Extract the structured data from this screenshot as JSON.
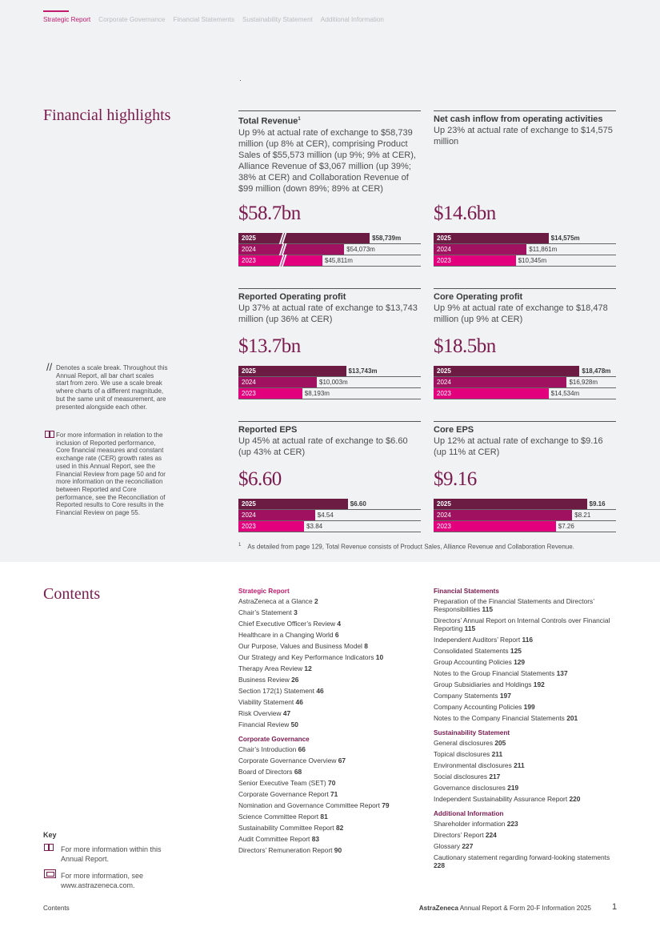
{
  "nav": {
    "items": [
      "Strategic Report",
      "Corporate Governance",
      "Financial Statements",
      "Sustainability Statement",
      "Additional Information"
    ]
  },
  "highlights": {
    "title": "Financial highlights",
    "metrics": [
      {
        "title": "Total Revenue",
        "title_sup": "1",
        "desc": "Up 9% at actual rate of exchange to $58,739 million (up 8% at CER), comprising Product Sales of $55,573 million (up 9%; 9% at CER), Alliance Revenue of $3,067 million (up 39%; 38% at CER) and Collaboration Revenue of $99 million (down 89%; 89% at CER)",
        "big": "$58.7bn",
        "bars": [
          {
            "year": "2025",
            "label": "$58,739m",
            "fill": 0.72
          },
          {
            "year": "2024",
            "label": "$54,073m",
            "fill": 0.58
          },
          {
            "year": "2023",
            "label": "$45,811m",
            "fill": 0.46
          }
        ]
      },
      {
        "title": "Net cash inflow from operating activities",
        "desc": "Up 23% at actual rate of exchange to $14,575 million",
        "big": "$14.6bn",
        "bars": [
          {
            "year": "2025",
            "label": "$14,575m",
            "fill": 0.63
          },
          {
            "year": "2024",
            "label": "$11,861m",
            "fill": 0.51
          },
          {
            "year": "2023",
            "label": "$10,345m",
            "fill": 0.45
          }
        ]
      },
      {
        "title": "Reported Operating profit",
        "desc": "Up 37% at actual rate of exchange to $13,743 million (up 36% at CER)",
        "big": "$13.7bn",
        "bars": [
          {
            "year": "2025",
            "label": "$13,743m",
            "fill": 0.59
          },
          {
            "year": "2024",
            "label": "$10,003m",
            "fill": 0.43
          },
          {
            "year": "2023",
            "label": "$8,193m",
            "fill": 0.35
          }
        ]
      },
      {
        "title": "Core Operating profit",
        "desc": "Up 9% at actual rate of exchange to $18,478 million (up 9% at CER)",
        "big": "$18.5bn",
        "bars": [
          {
            "year": "2025",
            "label": "$18,478m",
            "fill": 0.8
          },
          {
            "year": "2024",
            "label": "$16,928m",
            "fill": 0.73
          },
          {
            "year": "2023",
            "label": "$14,534m",
            "fill": 0.63
          }
        ]
      },
      {
        "title": "Reported EPS",
        "desc": "Up 45% at actual rate of exchange to $6.60 (up 43% at CER)",
        "big": "$6.60",
        "bars": [
          {
            "year": "2025",
            "label": "$6.60",
            "fill": 0.6
          },
          {
            "year": "2024",
            "label": "$4.54",
            "fill": 0.42
          },
          {
            "year": "2023",
            "label": "$3.84",
            "fill": 0.36
          }
        ]
      },
      {
        "title": "Core EPS",
        "desc": "Up 12% at actual rate of exchange to $9.16 (up 11% at CER)",
        "big": "$9.16",
        "bars": [
          {
            "year": "2025",
            "label": "$9.16",
            "fill": 0.84
          },
          {
            "year": "2024",
            "label": "$8.21",
            "fill": 0.76
          },
          {
            "year": "2023",
            "label": "$7.26",
            "fill": 0.67
          }
        ]
      }
    ],
    "note_scale_symbol": "//",
    "note_scale": "Denotes a scale break. Throughout this Annual Report, all bar chart scales start from zero. We use a scale break where charts of a different magnitude, but the same unit of measurement, are presented alongside each other.",
    "note_info": "For more information in relation to the inclusion of Reported performance, Core financial measures and constant exchange rate (CER) growth rates as used in this Annual Report, see the Financial Review from page 50 and for more information on the reconciliation between Reported and Core performance, see the Reconciliation of Reported results to Core results in the Financial Review on page 55.",
    "footnote_mark": "1",
    "footnote": "As detailed from page 129, Total Revenue consists of Product Sales, Alliance Revenue and Collaboration Revenue."
  },
  "contents": {
    "title": "Contents",
    "left_groups": [
      {
        "heading": "Strategic Report",
        "items": [
          {
            "text": "AstraZeneca at a Glance",
            "page": "2"
          },
          {
            "text": "Chair’s Statement",
            "page": "3"
          },
          {
            "text": "Chief Executive Officer’s Review",
            "page": "4"
          },
          {
            "text": "Healthcare in a Changing World",
            "page": "6"
          },
          {
            "text": "Our Purpose, Values and Business Model",
            "page": "8"
          },
          {
            "text": "Our Strategy and Key Performance Indicators",
            "page": "10"
          },
          {
            "text": "Therapy Area Review",
            "page": "12"
          },
          {
            "text": "Business Review",
            "page": "26"
          },
          {
            "text": "Section 172(1) Statement",
            "page": "46"
          },
          {
            "text": "Viability Statement",
            "page": "46"
          },
          {
            "text": "Risk Overview",
            "page": "47"
          },
          {
            "text": "Financial Review",
            "page": "50"
          }
        ]
      },
      {
        "heading": "Corporate Governance",
        "items": [
          {
            "text": "Chair’s Introduction",
            "page": "66"
          },
          {
            "text": "Corporate Governance Overview",
            "page": "67"
          },
          {
            "text": "Board of Directors",
            "page": "68"
          },
          {
            "text": "Senior Executive Team (SET)",
            "page": "70"
          },
          {
            "text": "Corporate Governance Report",
            "page": "71"
          },
          {
            "text": "Nomination and Governance Committee Report",
            "page": "79"
          },
          {
            "text": "Science Committee Report",
            "page": "81"
          },
          {
            "text": "Sustainability Committee Report",
            "page": "82"
          },
          {
            "text": "Audit Committee Report",
            "page": "83"
          },
          {
            "text": "Directors’ Remuneration Report",
            "page": "90"
          }
        ]
      }
    ],
    "right_groups": [
      {
        "heading": "Financial Statements",
        "items": [
          {
            "text": "Preparation of the Financial Statements and Directors’ Responsibilities",
            "page": "115"
          },
          {
            "text": "Directors’ Annual Report on Internal Controls over Financial Reporting",
            "page": "115"
          },
          {
            "text": "Independent Auditors’ Report",
            "page": "116"
          },
          {
            "text": "Consolidated Statements",
            "page": "125"
          },
          {
            "text": "Group Accounting Policies",
            "page": "129"
          },
          {
            "text": "Notes to the Group Financial Statements",
            "page": "137"
          },
          {
            "text": "Group Subsidiaries and Holdings",
            "page": "192"
          },
          {
            "text": "Company Statements",
            "page": "197"
          },
          {
            "text": "Company Accounting Policies",
            "page": "199"
          },
          {
            "text": "Notes to the Company Financial Statements",
            "page": "201"
          }
        ]
      },
      {
        "heading": "Sustainability Statement",
        "items": [
          {
            "text": "General disclosures",
            "page": "205"
          },
          {
            "text": "Topical disclosures",
            "page": "211"
          },
          {
            "text": "Environmental disclosures",
            "page": "211"
          },
          {
            "text": "Social disclosures",
            "page": "217"
          },
          {
            "text": "Governance disclosures",
            "page": "219"
          },
          {
            "text": "Independent Sustainability Assurance Report",
            "page": "220"
          }
        ]
      },
      {
        "heading": "Additional Information",
        "items": [
          {
            "text": "Shareholder information",
            "page": "223"
          },
          {
            "text": "Directors’ Report",
            "page": "224"
          },
          {
            "text": "Glossary",
            "page": "227"
          },
          {
            "text": "Cautionary statement regarding forward-looking statements",
            "page": "228"
          }
        ]
      }
    ]
  },
  "key": {
    "title": "Key",
    "internal": "For more information within this Annual Report.",
    "external": "For more information, see www.astrazeneca.com."
  },
  "footer": {
    "left": "Contents",
    "brand": "AstraZeneca",
    "doc": "Annual Report & Form 20-F Information 2025",
    "page": "1"
  }
}
